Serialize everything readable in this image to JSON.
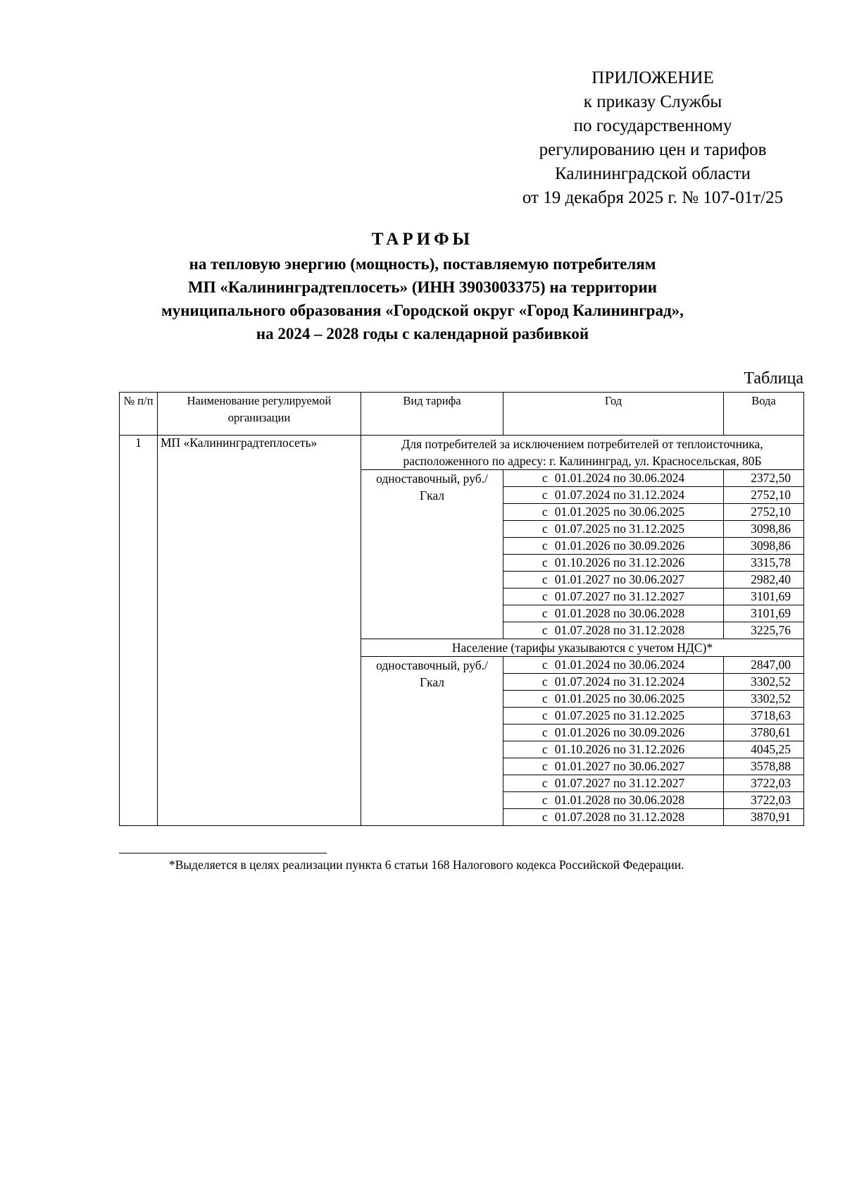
{
  "appendix": {
    "lines": [
      "ПРИЛОЖЕНИЕ",
      "к приказу Службы",
      "по государственному",
      "регулированию цен и тарифов",
      "Калининградской области",
      "от 19 декабря 2025 г. № 107-01т/25"
    ]
  },
  "title": {
    "main": "ТАРИФЫ",
    "sub": [
      "на тепловую энергию (мощность), поставляемую потребителям",
      "МП «Калининградтеплосеть» (ИНН 3903003375) на территории",
      "муниципального образования «Городской округ «Город Калининград»,",
      "на 2024 – 2028 годы с календарной разбивкой"
    ]
  },
  "table_label": "Таблица",
  "table": {
    "headers": {
      "num": "№ п/п",
      "org": "Наименование регулируемой организации",
      "kind": "Вид тарифа",
      "year": "Год",
      "water": "Вода"
    },
    "row_num": "1",
    "org": "МП «Калининградтеплосеть»",
    "period_prefix": "с",
    "groups": [
      {
        "segment": "Для потребителей за исключением потребителей от теплоисточника, расположенного по адресу: г. Калининград, ул. Красносельская, 80Б",
        "kind": "одноставочный, руб./Гкал",
        "rows": [
          {
            "period": "01.01.2024 по 30.06.2024",
            "value": "2372,50"
          },
          {
            "period": "01.07.2024 по 31.12.2024",
            "value": "2752,10"
          },
          {
            "period": "01.01.2025 по 30.06.2025",
            "value": "2752,10"
          },
          {
            "period": "01.07.2025 по 31.12.2025",
            "value": "3098,86"
          },
          {
            "period": "01.01.2026 по 30.09.2026",
            "value": "3098,86"
          },
          {
            "period": "01.10.2026 по 31.12.2026",
            "value": "3315,78"
          },
          {
            "period": "01.01.2027 по 30.06.2027",
            "value": "2982,40"
          },
          {
            "period": "01.07.2027 по 31.12.2027",
            "value": "3101,69"
          },
          {
            "period": "01.01.2028 по 30.06.2028",
            "value": "3101,69"
          },
          {
            "period": "01.07.2028 по 31.12.2028",
            "value": "3225,76"
          }
        ]
      },
      {
        "segment": "Население (тарифы указываются с учетом НДС)*",
        "kind": "одноставочный, руб./Гкал",
        "rows": [
          {
            "period": "01.01.2024 по 30.06.2024",
            "value": "2847,00"
          },
          {
            "period": "01.07.2024 по 31.12.2024",
            "value": "3302,52"
          },
          {
            "period": "01.01.2025 по 30.06.2025",
            "value": "3302,52"
          },
          {
            "period": "01.07.2025 по 31.12.2025",
            "value": "3718,63"
          },
          {
            "period": "01.01.2026 по 30.09.2026",
            "value": "3780,61"
          },
          {
            "period": "01.10.2026 по 31.12.2026",
            "value": "4045,25"
          },
          {
            "period": "01.01.2027 по 30.06.2027",
            "value": "3578,88"
          },
          {
            "period": "01.07.2027 по 31.12.2027",
            "value": "3722,03"
          },
          {
            "period": "01.01.2028 по 30.06.2028",
            "value": "3722,03"
          },
          {
            "period": "01.07.2028 по 31.12.2028",
            "value": "3870,91"
          }
        ]
      }
    ]
  },
  "footnote": "*Выделяется в целях реализации пункта 6 статьи 168 Налогового кодекса Российской Федерации."
}
